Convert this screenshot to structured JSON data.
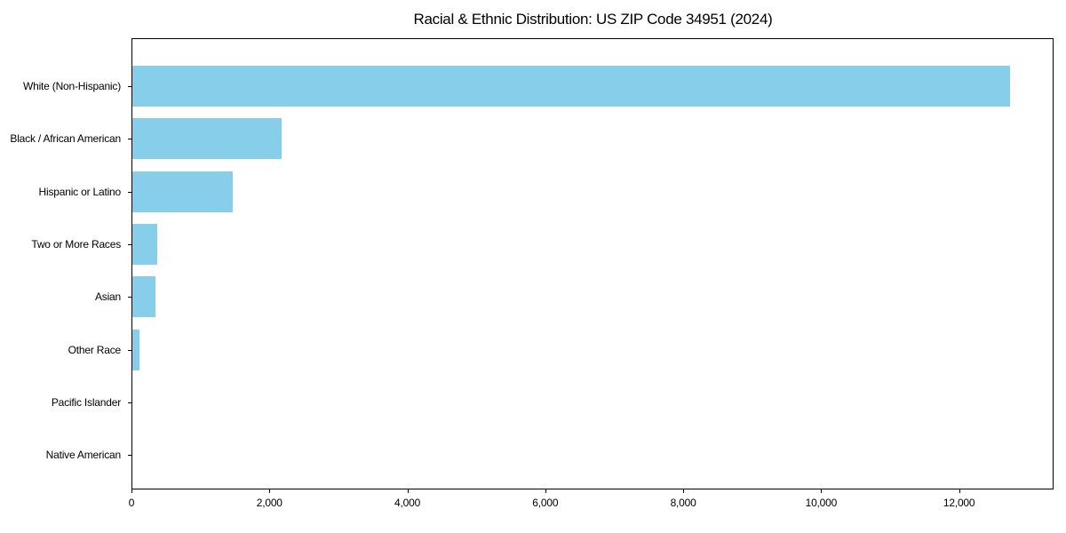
{
  "chart_data": {
    "type": "bar",
    "orientation": "horizontal",
    "title": "Racial & Ethnic Distribution: US ZIP Code 34951 (2024)",
    "categories": [
      "White (Non-Hispanic)",
      "Black / African American",
      "Hispanic or Latino",
      "Two or More Races",
      "Asian",
      "Other Race",
      "Pacific Islander",
      "Native American"
    ],
    "values": [
      12720,
      2170,
      1460,
      360,
      335,
      100,
      0,
      0
    ],
    "xlabel": "",
    "ylabel": "",
    "xlim": [
      0,
      13370
    ],
    "x_ticks": [
      0,
      2000,
      4000,
      6000,
      8000,
      10000,
      12000
    ],
    "x_tick_labels": [
      "0",
      "2,000",
      "4,000",
      "6,000",
      "8,000",
      "10,000",
      "12,000"
    ],
    "bar_color": "#87CEEB",
    "frame_color": "#000000",
    "grid": false,
    "legend": false
  }
}
